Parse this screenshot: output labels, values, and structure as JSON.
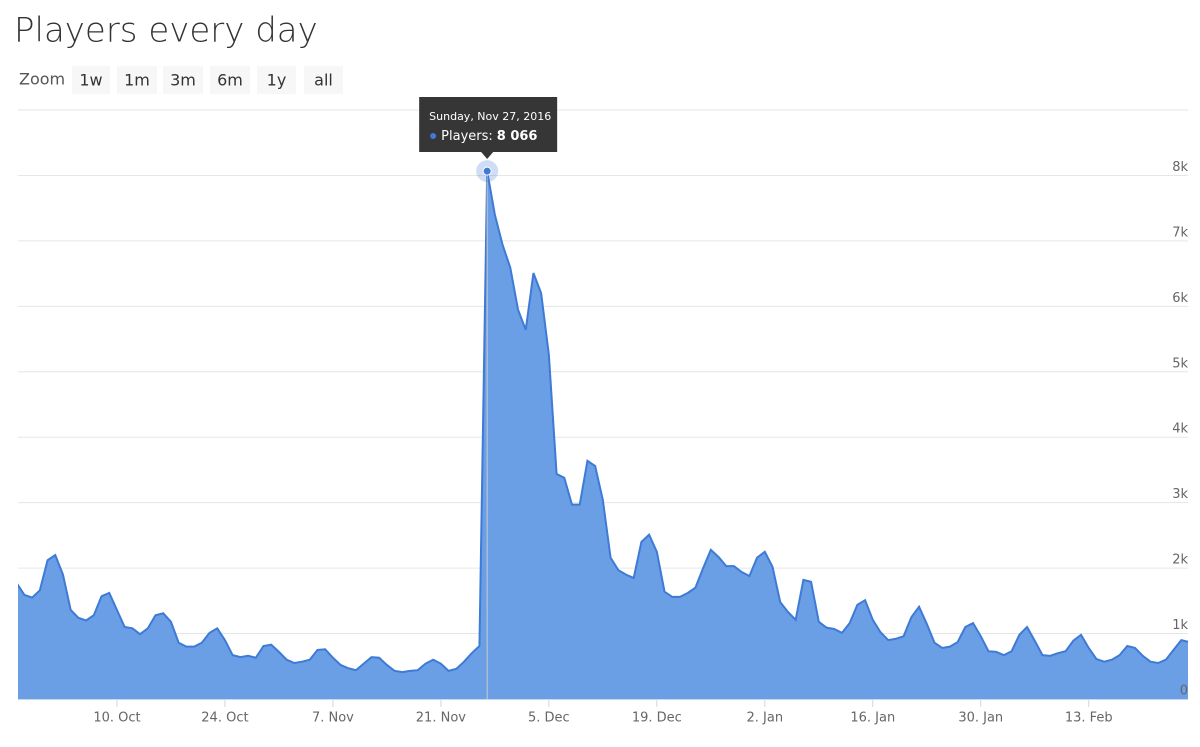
{
  "chart_data": {
    "type": "area",
    "title": "Players every day",
    "zoom": {
      "label": "Zoom",
      "buttons": [
        "1w",
        "1m",
        "3m",
        "6m",
        "1y",
        "all"
      ]
    },
    "x": [
      "2016-09-27",
      "2016-09-28",
      "2016-09-29",
      "2016-09-30",
      "2016-10-01",
      "2016-10-02",
      "2016-10-03",
      "2016-10-04",
      "2016-10-05",
      "2016-10-06",
      "2016-10-07",
      "2016-10-08",
      "2016-10-09",
      "2016-10-10",
      "2016-10-11",
      "2016-10-12",
      "2016-10-13",
      "2016-10-14",
      "2016-10-15",
      "2016-10-16",
      "2016-10-17",
      "2016-10-18",
      "2016-10-19",
      "2016-10-20",
      "2016-10-21",
      "2016-10-22",
      "2016-10-23",
      "2016-10-24",
      "2016-10-25",
      "2016-10-26",
      "2016-10-27",
      "2016-10-28",
      "2016-10-29",
      "2016-10-30",
      "2016-10-31",
      "2016-11-01",
      "2016-11-02",
      "2016-11-03",
      "2016-11-04",
      "2016-11-05",
      "2016-11-06",
      "2016-11-07",
      "2016-11-08",
      "2016-11-09",
      "2016-11-10",
      "2016-11-11",
      "2016-11-12",
      "2016-11-13",
      "2016-11-14",
      "2016-11-15",
      "2016-11-16",
      "2016-11-17",
      "2016-11-18",
      "2016-11-19",
      "2016-11-20",
      "2016-11-21",
      "2016-11-22",
      "2016-11-23",
      "2016-11-24",
      "2016-11-25",
      "2016-11-26",
      "2016-11-27",
      "2016-11-28",
      "2016-11-29",
      "2016-11-30",
      "2016-12-01",
      "2016-12-02",
      "2016-12-03",
      "2016-12-04",
      "2016-12-05",
      "2016-12-06",
      "2016-12-07",
      "2016-12-08",
      "2016-12-09",
      "2016-12-10",
      "2016-12-11",
      "2016-12-12",
      "2016-12-13",
      "2016-12-14",
      "2016-12-15",
      "2016-12-16",
      "2016-12-17",
      "2016-12-18",
      "2016-12-19",
      "2016-12-20",
      "2016-12-21",
      "2016-12-22",
      "2016-12-23",
      "2016-12-24",
      "2016-12-25",
      "2016-12-26",
      "2016-12-27",
      "2016-12-28",
      "2016-12-29",
      "2016-12-30",
      "2016-12-31",
      "2017-01-01",
      "2017-01-02",
      "2017-01-03",
      "2017-01-04",
      "2017-01-05",
      "2017-01-06",
      "2017-01-07",
      "2017-01-08",
      "2017-01-09",
      "2017-01-10",
      "2017-01-11",
      "2017-01-12",
      "2017-01-13",
      "2017-01-14",
      "2017-01-15",
      "2017-01-16",
      "2017-01-17",
      "2017-01-18",
      "2017-01-19",
      "2017-01-20",
      "2017-01-21",
      "2017-01-22",
      "2017-01-23",
      "2017-01-24",
      "2017-01-25",
      "2017-01-26",
      "2017-01-27",
      "2017-01-28",
      "2017-01-29",
      "2017-01-30",
      "2017-01-31",
      "2017-02-01",
      "2017-02-02",
      "2017-02-03",
      "2017-02-04",
      "2017-02-05",
      "2017-02-06",
      "2017-02-07",
      "2017-02-08",
      "2017-02-09",
      "2017-02-10",
      "2017-02-11",
      "2017-02-12",
      "2017-02-13",
      "2017-02-14",
      "2017-02-15",
      "2017-02-16",
      "2017-02-17",
      "2017-02-18",
      "2017-02-19",
      "2017-02-20",
      "2017-02-21",
      "2017-02-22",
      "2017-02-23",
      "2017-02-24",
      "2017-02-25",
      "2017-02-26"
    ],
    "series": [
      {
        "name": "Players",
        "color": "#3e7ad6",
        "fill": "#6a9fe6",
        "values": [
          1770,
          1590,
          1550,
          1660,
          2120,
          2200,
          1900,
          1360,
          1240,
          1200,
          1280,
          1570,
          1620,
          1360,
          1100,
          1080,
          990,
          1080,
          1280,
          1310,
          1180,
          860,
          800,
          800,
          860,
          1010,
          1080,
          900,
          670,
          640,
          660,
          630,
          810,
          830,
          720,
          600,
          550,
          570,
          600,
          750,
          760,
          630,
          520,
          470,
          440,
          540,
          640,
          630,
          520,
          430,
          410,
          430,
          440,
          540,
          600,
          540,
          430,
          460,
          570,
          700,
          810,
          8066,
          7400,
          6940,
          6590,
          5950,
          5640,
          6510,
          6200,
          5260,
          3440,
          3380,
          2970,
          2970,
          3640,
          3560,
          3040,
          2160,
          1970,
          1900,
          1850,
          2400,
          2510,
          2250,
          1640,
          1560,
          1560,
          1620,
          1700,
          2000,
          2280,
          2170,
          2030,
          2030,
          1940,
          1880,
          2160,
          2250,
          2020,
          1480,
          1330,
          1210,
          1820,
          1790,
          1180,
          1090,
          1070,
          1010,
          1160,
          1440,
          1510,
          1210,
          1020,
          900,
          920,
          960,
          1250,
          1410,
          1150,
          860,
          780,
          800,
          870,
          1100,
          1160,
          960,
          730,
          720,
          670,
          730,
          980,
          1100,
          890,
          670,
          660,
          700,
          730,
          890,
          980,
          780,
          610,
          570,
          600,
          670,
          810,
          780,
          660,
          570,
          550,
          600,
          750,
          900,
          870
        ]
      }
    ],
    "xlim": [
      "2016-09-27",
      "2017-02-26"
    ],
    "xticks": [
      {
        "value": "2016-10-10",
        "label": "10. Oct"
      },
      {
        "value": "2016-10-24",
        "label": "24. Oct"
      },
      {
        "value": "2016-11-07",
        "label": "7. Nov"
      },
      {
        "value": "2016-11-21",
        "label": "21. Nov"
      },
      {
        "value": "2016-12-05",
        "label": "5. Dec"
      },
      {
        "value": "2016-12-19",
        "label": "19. Dec"
      },
      {
        "value": "2017-01-02",
        "label": "2. Jan"
      },
      {
        "value": "2017-01-16",
        "label": "16. Jan"
      },
      {
        "value": "2017-01-30",
        "label": "30. Jan"
      },
      {
        "value": "2017-02-13",
        "label": "13. Feb"
      }
    ],
    "ylim": [
      0,
      9000
    ],
    "yticks": [
      0,
      {
        "value": 1000,
        "label": "1k"
      },
      {
        "value": 2000,
        "label": "2k"
      },
      {
        "value": 3000,
        "label": "3k"
      },
      {
        "value": 4000,
        "label": "4k"
      },
      {
        "value": 5000,
        "label": "5k"
      },
      {
        "value": 6000,
        "label": "6k"
      },
      {
        "value": 7000,
        "label": "7k"
      },
      {
        "value": 8000,
        "label": "8k"
      }
    ],
    "grid": true,
    "tooltip": {
      "x": "2016-11-27",
      "title": "Sunday, Nov 27, 2016",
      "label": "Players:",
      "value": 8066,
      "value_label": "8 066"
    }
  }
}
